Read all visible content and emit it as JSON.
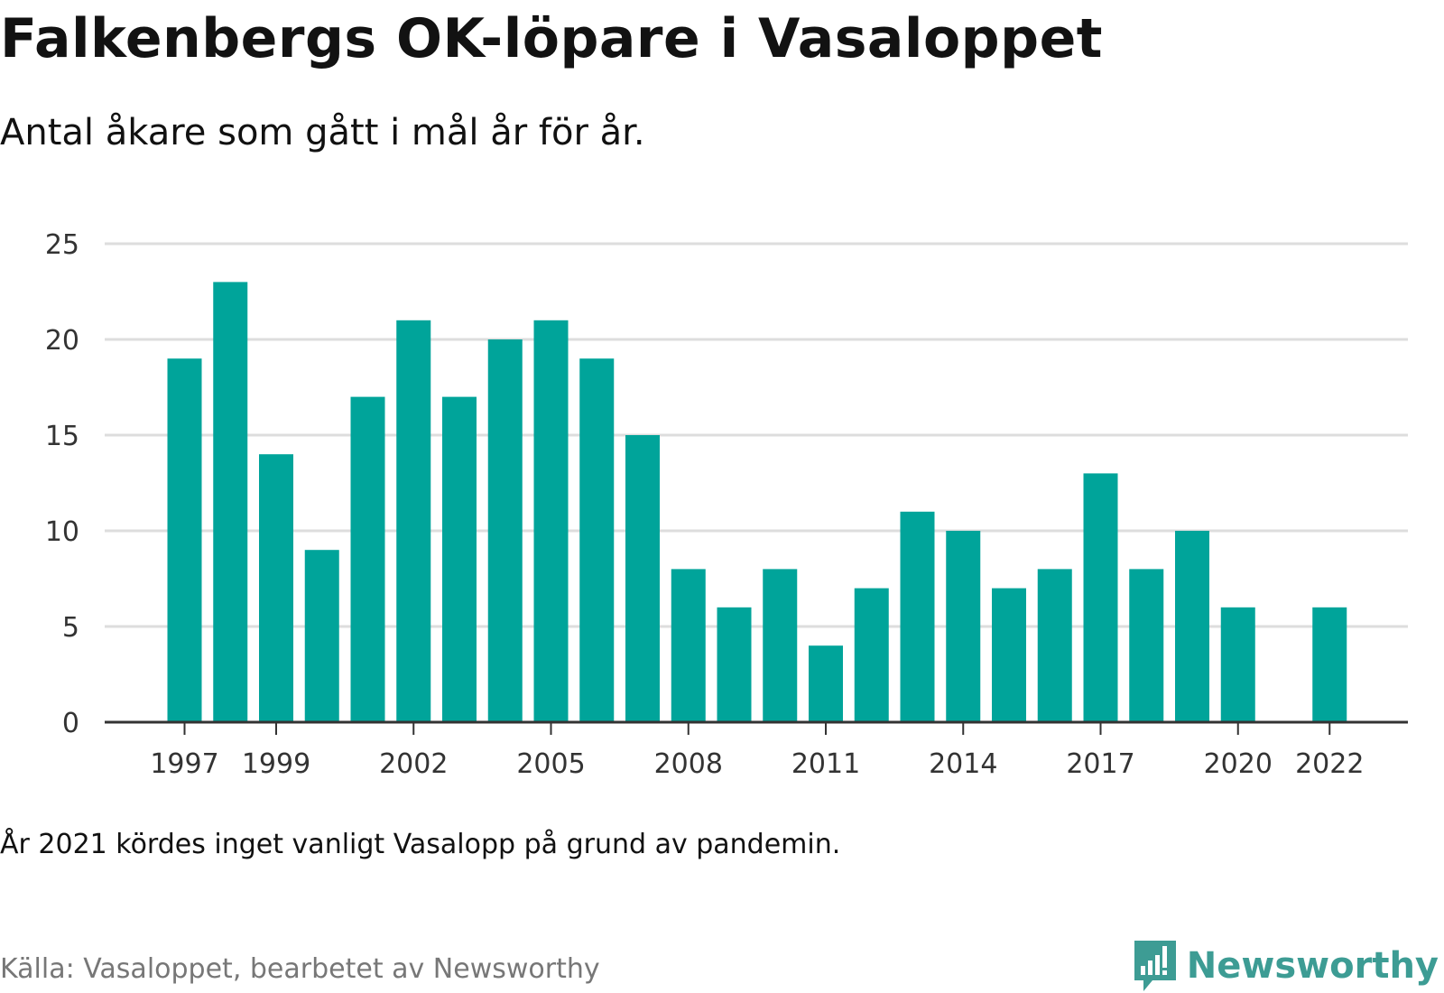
{
  "title": "Falkenbergs OK-löpare i Vasaloppet",
  "subtitle": "Antal åkare som gått i mål år för år.",
  "note": "År 2021 kördes inget vanligt Vasalopp på grund av pandemin.",
  "source": "Källa: Vasaloppet, bearbetet av Newsworthy",
  "brand": {
    "name": "Newsworthy",
    "icon": "newsworthy-logo-icon"
  },
  "colors": {
    "bar": "#00a49a",
    "grid": "#dddddd",
    "axis": "#333333",
    "brand": "#3d9c94"
  },
  "chart_data": {
    "type": "bar",
    "categories": [
      1997,
      1998,
      1999,
      2000,
      2001,
      2002,
      2003,
      2004,
      2005,
      2006,
      2007,
      2008,
      2009,
      2010,
      2011,
      2012,
      2013,
      2014,
      2015,
      2016,
      2017,
      2018,
      2019,
      2020,
      2021,
      2022
    ],
    "values": [
      19,
      23,
      14,
      9,
      17,
      21,
      17,
      20,
      21,
      19,
      15,
      8,
      6,
      8,
      4,
      7,
      11,
      10,
      7,
      8,
      13,
      8,
      10,
      6,
      null,
      6
    ],
    "x_tick_labels": [
      "1997",
      "1999",
      "2002",
      "2005",
      "2008",
      "2011",
      "2014",
      "2017",
      "2020",
      "2022"
    ],
    "y_ticks": [
      0,
      5,
      10,
      15,
      20,
      25
    ],
    "ylim": [
      0,
      25
    ],
    "grid": true,
    "legend": "none"
  }
}
